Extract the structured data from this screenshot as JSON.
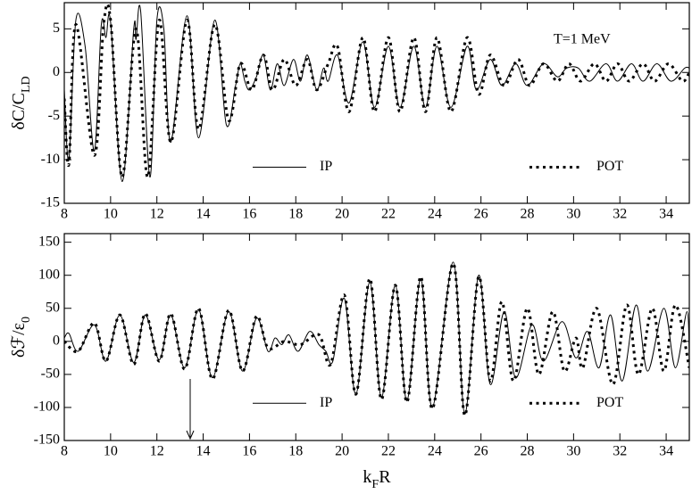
{
  "chart_data": [
    {
      "type": "line",
      "ylabel": [
        "δC/C",
        "LD"
      ],
      "annotation": "T=1 MeV",
      "xlim": [
        8,
        35
      ],
      "ylim": [
        -15,
        8
      ],
      "xticks": [
        8,
        10,
        12,
        14,
        16,
        18,
        20,
        22,
        24,
        26,
        28,
        30,
        32,
        34
      ],
      "yticks": [
        -15,
        -10,
        -5,
        0,
        5
      ],
      "series": [
        {
          "name": "IP",
          "color": "#000000",
          "style": "solid",
          "x": [
            8,
            8.2,
            8.5,
            8.9,
            9.3,
            9.6,
            9.8,
            10.0,
            10.5,
            11.0,
            11.1,
            11.3,
            11.7,
            12.0,
            12.3,
            12.6,
            13.3,
            13.8,
            14.5,
            15.0,
            15.4,
            15.6,
            15.8,
            16.0,
            16.3,
            16.6,
            16.9,
            17.2,
            17.5,
            17.9,
            18.2,
            18.5,
            18.9,
            19.2,
            19.4,
            19.8,
            20.3,
            20.9,
            21.4,
            22.0,
            22.5,
            23.1,
            23.6,
            24.1,
            24.7,
            25.4,
            25.8,
            26.4,
            26.9,
            27.5,
            28.0,
            28.7,
            29.3,
            29.7,
            30.2,
            30.7,
            31.4,
            31.9,
            32.5,
            33.0,
            33.6,
            34.2,
            34.8,
            35
          ],
          "values": [
            -2,
            -10,
            6,
            3,
            -9,
            5.5,
            4,
            5.8,
            -12.5,
            5,
            3.8,
            7,
            -12,
            6,
            5,
            -8,
            6.5,
            -7.5,
            6,
            -6,
            -1.5,
            1,
            -1,
            -2,
            -0.5,
            2,
            -2,
            1,
            -1.5,
            1.5,
            -1,
            2,
            -2,
            0.5,
            -1,
            2,
            -3.5,
            3.5,
            -4,
            3,
            -4,
            3,
            -4,
            3,
            -4,
            3,
            -2,
            1.5,
            -1.5,
            1,
            -1.5,
            1,
            -0.5,
            0.5,
            0.5,
            -1,
            1,
            -1,
            1,
            -1,
            1,
            -1,
            0.5,
            0.5
          ]
        },
        {
          "name": "POT",
          "color": "#000000",
          "style": "dotted",
          "x": [
            8,
            8.2,
            8.5,
            9.3,
            9.7,
            10.0,
            10.5,
            11.1,
            11.6,
            12.1,
            12.6,
            13.3,
            13.8,
            14.5,
            15.1,
            15.6,
            16.1,
            16.6,
            17.0,
            17.5,
            18.0,
            18.5,
            18.9,
            19.4,
            19.8,
            20.3,
            20.9,
            21.4,
            22.0,
            22.5,
            23.1,
            23.6,
            24.1,
            24.7,
            25.4,
            25.9,
            26.4,
            27.0,
            27.6,
            28.1,
            28.7,
            29.3,
            29.8,
            30.3,
            30.9,
            31.4,
            31.9,
            32.4,
            33.0,
            33.5,
            34.1,
            34.7,
            35
          ],
          "values": [
            -3,
            -10.5,
            5.5,
            -9.5,
            5.5,
            6,
            -12,
            5,
            -12,
            6,
            -8,
            6,
            -6.5,
            5.5,
            -5.5,
            1,
            -2,
            2,
            -2,
            1.5,
            -1.5,
            1.5,
            -2,
            1,
            3,
            -4.5,
            4,
            -4.5,
            4,
            -4.5,
            4,
            -4.5,
            4,
            -4.5,
            4,
            -2.5,
            2,
            -1.5,
            1.5,
            -1.5,
            1,
            -1,
            1,
            -1,
            1,
            -1,
            1,
            -1,
            1,
            -1,
            1,
            -1,
            0
          ]
        }
      ]
    },
    {
      "type": "line",
      "ylabel": [
        "δℱ/ε",
        "0"
      ],
      "xlabel": [
        "k",
        "F",
        "R"
      ],
      "xlim": [
        8,
        35
      ],
      "ylim": [
        -150,
        163
      ],
      "xticks": [
        8,
        10,
        12,
        14,
        16,
        18,
        20,
        22,
        24,
        26,
        28,
        30,
        32,
        34
      ],
      "yticks": [
        -150,
        -100,
        -50,
        0,
        50,
        100,
        150
      ],
      "series": [
        {
          "name": "IP",
          "color": "#000000",
          "style": "solid",
          "x": [
            8,
            8.2,
            8.6,
            9.3,
            9.8,
            10.4,
            11.0,
            11.5,
            12.1,
            12.6,
            13.2,
            13.8,
            14.4,
            15.1,
            15.7,
            16.3,
            16.8,
            17.1,
            17.4,
            17.7,
            18.1,
            18.6,
            19.0,
            19.3,
            19.6,
            20.1,
            20.6,
            21.2,
            21.7,
            22.3,
            22.8,
            23.4,
            23.9,
            24.8,
            25.3,
            25.9,
            26.4,
            27.0,
            27.5,
            28.2,
            28.7,
            29.5,
            30.1,
            30.6,
            31.1,
            31.6,
            32.1,
            32.7,
            33.2,
            33.9,
            34.4,
            34.9,
            35
          ],
          "values": [
            5,
            12,
            -15,
            25,
            -30,
            40,
            -32,
            40,
            -28,
            40,
            -40,
            48,
            -55,
            45,
            -45,
            35,
            -15,
            5,
            -5,
            10,
            -15,
            15,
            -5,
            -15,
            -30,
            65,
            -80,
            90,
            -85,
            85,
            -90,
            95,
            -100,
            120,
            -110,
            100,
            -65,
            45,
            -55,
            25,
            -30,
            30,
            -25,
            15,
            -40,
            40,
            -60,
            55,
            -45,
            50,
            -40,
            45,
            -40
          ]
        },
        {
          "name": "POT",
          "color": "#000000",
          "style": "dotted",
          "x": [
            8,
            8.6,
            9.3,
            9.8,
            10.4,
            11.0,
            11.5,
            12.1,
            12.6,
            13.2,
            13.8,
            14.4,
            15.1,
            15.7,
            16.3,
            16.8,
            17.5,
            18.2,
            19.0,
            19.5,
            20.1,
            20.6,
            21.2,
            21.7,
            22.3,
            22.8,
            23.4,
            23.9,
            24.8,
            25.3,
            25.9,
            26.4,
            26.9,
            27.4,
            28.0,
            28.5,
            29.1,
            29.6,
            30.1,
            30.4,
            31.0,
            31.7,
            32.3,
            32.8,
            33.4,
            33.9,
            34.4,
            35
          ],
          "values": [
            0,
            -15,
            28,
            -30,
            40,
            -35,
            42,
            -30,
            42,
            -42,
            50,
            -57,
            47,
            -45,
            38,
            -10,
            0,
            -5,
            10,
            -35,
            70,
            -80,
            95,
            -88,
            85,
            -92,
            98,
            -102,
            118,
            -112,
            98,
            -60,
            60,
            -60,
            50,
            -50,
            45,
            -45,
            5,
            -40,
            50,
            -65,
            55,
            -50,
            50,
            -45,
            55,
            -40
          ]
        }
      ]
    }
  ]
}
